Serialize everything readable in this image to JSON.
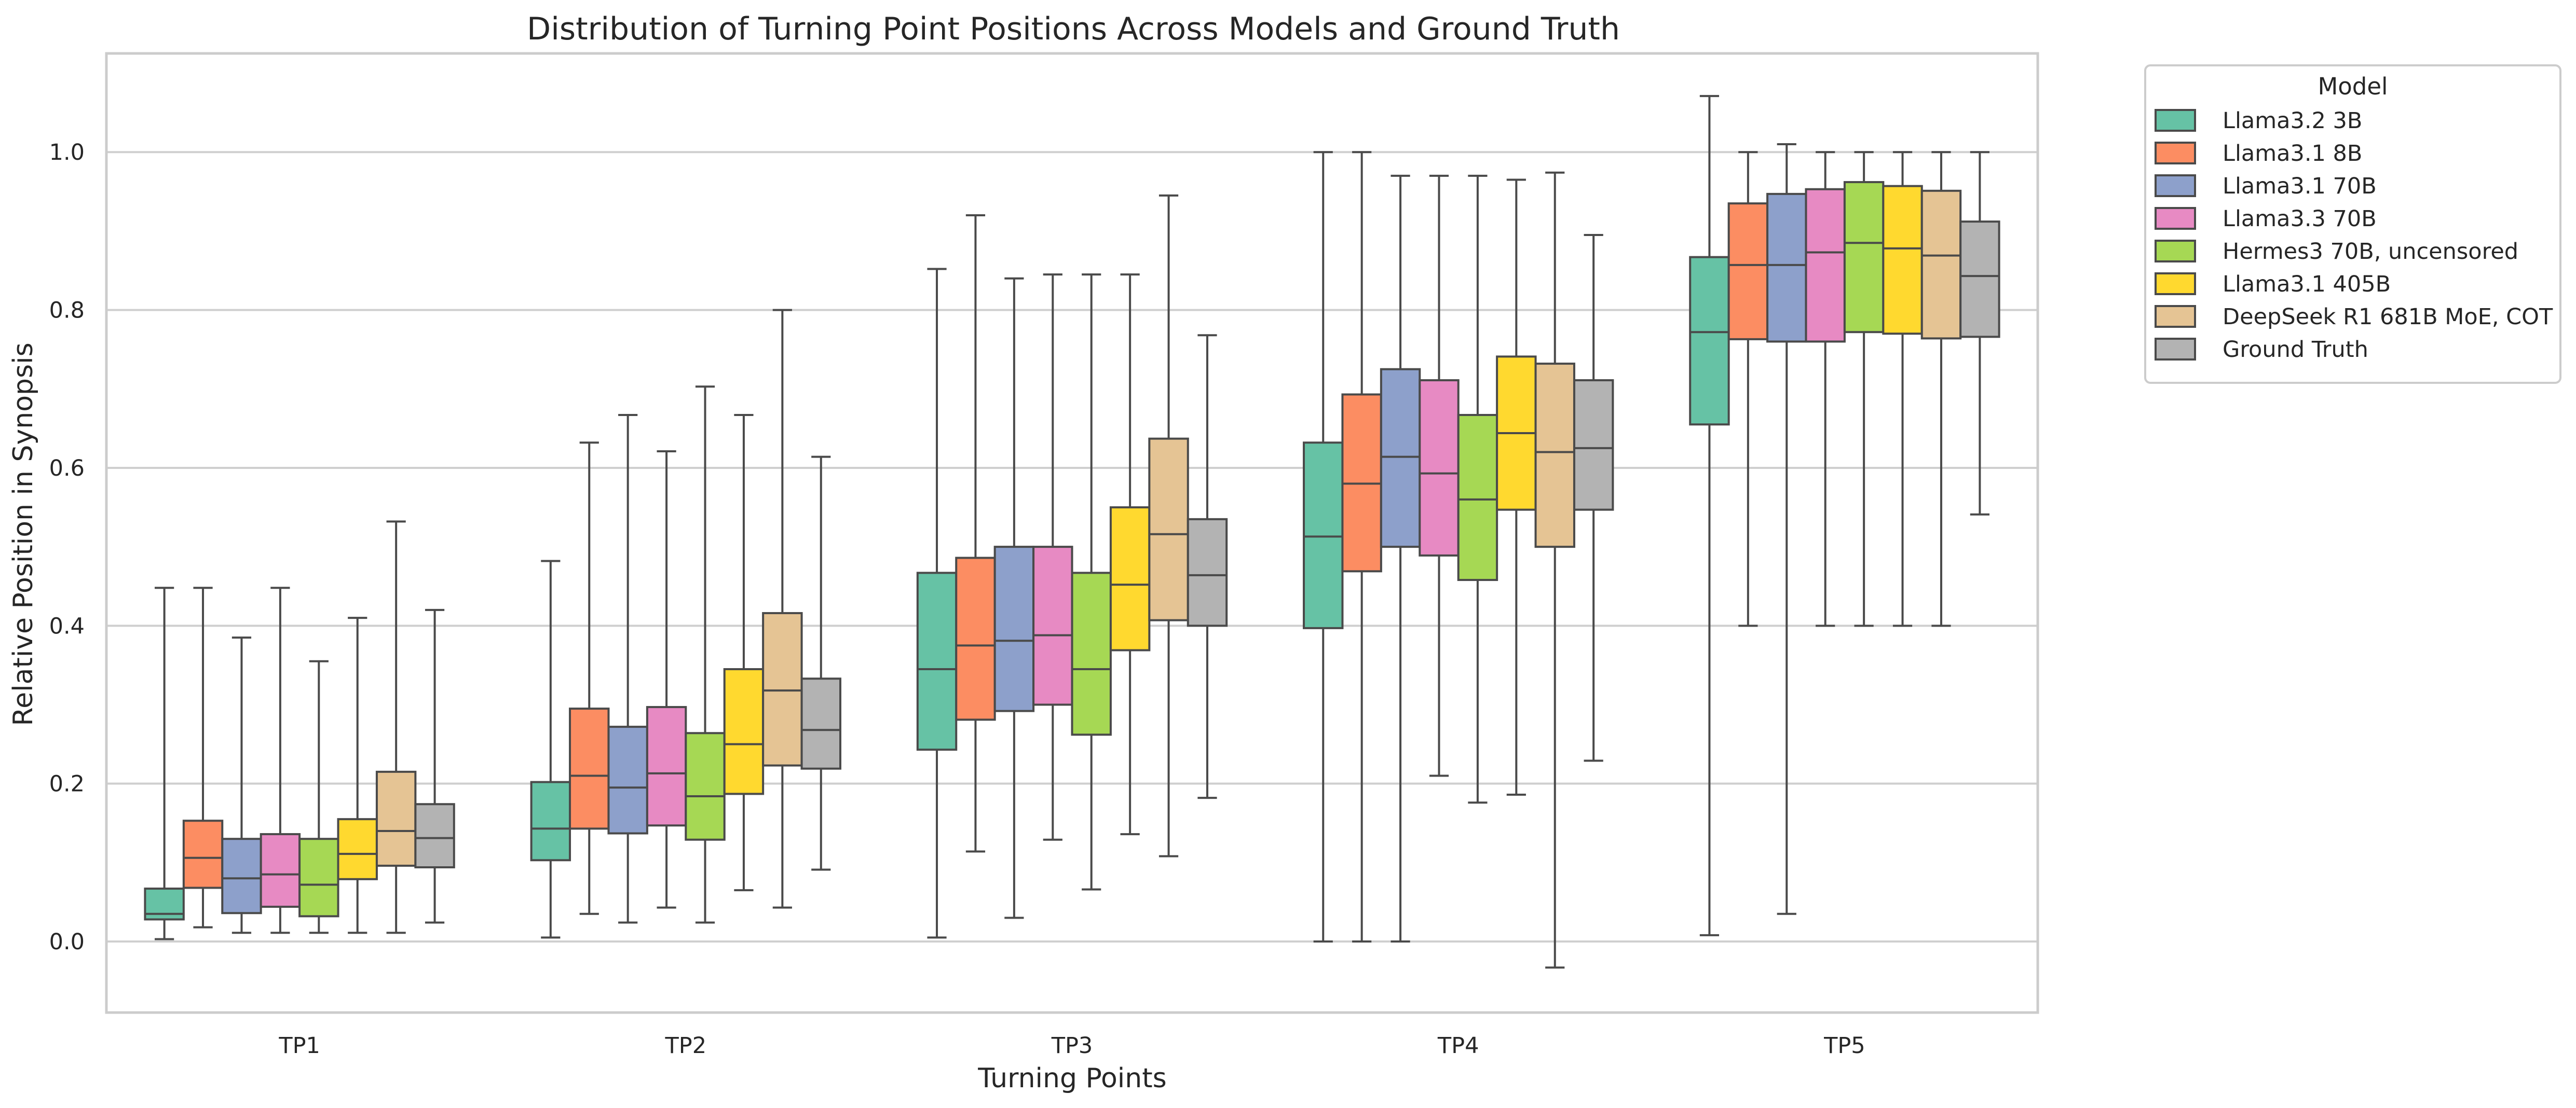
{
  "chart_data": {
    "type": "box",
    "title": "Distribution of Turning Point Positions Across Models and Ground Truth",
    "xlabel": "Turning Points",
    "ylabel": "Relative Position in Synopsis",
    "ylim": [
      -0.09,
      1.125
    ],
    "yticks": [
      0.0,
      0.2,
      0.4,
      0.6,
      0.8,
      1.0
    ],
    "ytick_labels": [
      "0.0",
      "0.2",
      "0.4",
      "0.6",
      "0.8",
      "1.0"
    ],
    "grid": true,
    "legend_title": "Model",
    "legend_position": "outside-top-right",
    "categories": [
      "TP1",
      "TP2",
      "TP3",
      "TP4",
      "TP5"
    ],
    "series": [
      {
        "name": "Llama3.2 3B",
        "color": "#66c2a5",
        "stats": [
          {
            "min": 0.003,
            "q1": 0.028,
            "median": 0.035,
            "q3": 0.067,
            "max": 0.448
          },
          {
            "min": 0.005,
            "q1": 0.103,
            "median": 0.143,
            "q3": 0.202,
            "max": 0.482
          },
          {
            "min": 0.005,
            "q1": 0.243,
            "median": 0.345,
            "q3": 0.467,
            "max": 0.852
          },
          {
            "min": 0.0,
            "q1": 0.397,
            "median": 0.513,
            "q3": 0.632,
            "max": 1.0
          },
          {
            "min": 0.008,
            "q1": 0.655,
            "median": 0.772,
            "q3": 0.867,
            "max": 1.071
          }
        ]
      },
      {
        "name": "Llama3.1 8B",
        "color": "#fc8d62",
        "stats": [
          {
            "min": 0.018,
            "q1": 0.068,
            "median": 0.106,
            "q3": 0.153,
            "max": 0.448
          },
          {
            "min": 0.035,
            "q1": 0.143,
            "median": 0.21,
            "q3": 0.295,
            "max": 0.632
          },
          {
            "min": 0.114,
            "q1": 0.281,
            "median": 0.375,
            "q3": 0.486,
            "max": 0.92
          },
          {
            "min": 0.0,
            "q1": 0.469,
            "median": 0.58,
            "q3": 0.693,
            "max": 1.0
          },
          {
            "min": 0.4,
            "q1": 0.763,
            "median": 0.857,
            "q3": 0.935,
            "max": 1.0
          }
        ]
      },
      {
        "name": "Llama3.1 70B",
        "color": "#8da0cb",
        "stats": [
          {
            "min": 0.011,
            "q1": 0.036,
            "median": 0.08,
            "q3": 0.13,
            "max": 0.385
          },
          {
            "min": 0.024,
            "q1": 0.137,
            "median": 0.195,
            "q3": 0.272,
            "max": 0.667
          },
          {
            "min": 0.03,
            "q1": 0.292,
            "median": 0.381,
            "q3": 0.5,
            "max": 0.84
          },
          {
            "min": 0.0,
            "q1": 0.5,
            "median": 0.614,
            "q3": 0.725,
            "max": 0.97
          },
          {
            "min": 0.035,
            "q1": 0.76,
            "median": 0.857,
            "q3": 0.947,
            "max": 1.01
          }
        ]
      },
      {
        "name": "Llama3.3 70B",
        "color": "#e78ac3",
        "stats": [
          {
            "min": 0.011,
            "q1": 0.044,
            "median": 0.085,
            "q3": 0.136,
            "max": 0.448
          },
          {
            "min": 0.043,
            "q1": 0.147,
            "median": 0.213,
            "q3": 0.297,
            "max": 0.621
          },
          {
            "min": 0.129,
            "q1": 0.3,
            "median": 0.388,
            "q3": 0.5,
            "max": 0.845
          },
          {
            "min": 0.21,
            "q1": 0.489,
            "median": 0.593,
            "q3": 0.711,
            "max": 0.97
          },
          {
            "min": 0.4,
            "q1": 0.76,
            "median": 0.873,
            "q3": 0.953,
            "max": 1.0
          }
        ]
      },
      {
        "name": "Hermes3 70B, uncensored",
        "color": "#a6d854",
        "stats": [
          {
            "min": 0.011,
            "q1": 0.032,
            "median": 0.072,
            "q3": 0.13,
            "max": 0.355
          },
          {
            "min": 0.024,
            "q1": 0.129,
            "median": 0.184,
            "q3": 0.264,
            "max": 0.703
          },
          {
            "min": 0.066,
            "q1": 0.262,
            "median": 0.345,
            "q3": 0.467,
            "max": 0.845
          },
          {
            "min": 0.176,
            "q1": 0.458,
            "median": 0.56,
            "q3": 0.667,
            "max": 0.97
          },
          {
            "min": 0.4,
            "q1": 0.772,
            "median": 0.885,
            "q3": 0.962,
            "max": 1.0
          }
        ]
      },
      {
        "name": "Llama3.1 405B",
        "color": "#ffd92f",
        "stats": [
          {
            "min": 0.011,
            "q1": 0.079,
            "median": 0.111,
            "q3": 0.155,
            "max": 0.41
          },
          {
            "min": 0.065,
            "q1": 0.187,
            "median": 0.25,
            "q3": 0.345,
            "max": 0.667
          },
          {
            "min": 0.136,
            "q1": 0.369,
            "median": 0.452,
            "q3": 0.55,
            "max": 0.845
          },
          {
            "min": 0.186,
            "q1": 0.547,
            "median": 0.644,
            "q3": 0.741,
            "max": 0.965
          },
          {
            "min": 0.4,
            "q1": 0.77,
            "median": 0.878,
            "q3": 0.957,
            "max": 1.0
          }
        ]
      },
      {
        "name": "DeepSeek R1 681B MoE, COT",
        "color": "#e5c494",
        "stats": [
          {
            "min": 0.011,
            "q1": 0.096,
            "median": 0.14,
            "q3": 0.215,
            "max": 0.532
          },
          {
            "min": 0.043,
            "q1": 0.223,
            "median": 0.318,
            "q3": 0.416,
            "max": 0.8
          },
          {
            "min": 0.108,
            "q1": 0.407,
            "median": 0.516,
            "q3": 0.637,
            "max": 0.945
          },
          {
            "min": -0.033,
            "q1": 0.5,
            "median": 0.62,
            "q3": 0.732,
            "max": 0.974
          },
          {
            "min": 0.4,
            "q1": 0.764,
            "median": 0.869,
            "q3": 0.951,
            "max": 1.0
          }
        ]
      },
      {
        "name": "Ground Truth",
        "color": "#b3b3b3",
        "stats": [
          {
            "min": 0.024,
            "q1": 0.094,
            "median": 0.131,
            "q3": 0.174,
            "max": 0.42
          },
          {
            "min": 0.091,
            "q1": 0.219,
            "median": 0.268,
            "q3": 0.333,
            "max": 0.614
          },
          {
            "min": 0.182,
            "q1": 0.4,
            "median": 0.464,
            "q3": 0.535,
            "max": 0.768
          },
          {
            "min": 0.229,
            "q1": 0.547,
            "median": 0.625,
            "q3": 0.711,
            "max": 0.895
          },
          {
            "min": 0.541,
            "q1": 0.766,
            "median": 0.843,
            "q3": 0.912,
            "max": 1.0
          }
        ]
      }
    ]
  }
}
